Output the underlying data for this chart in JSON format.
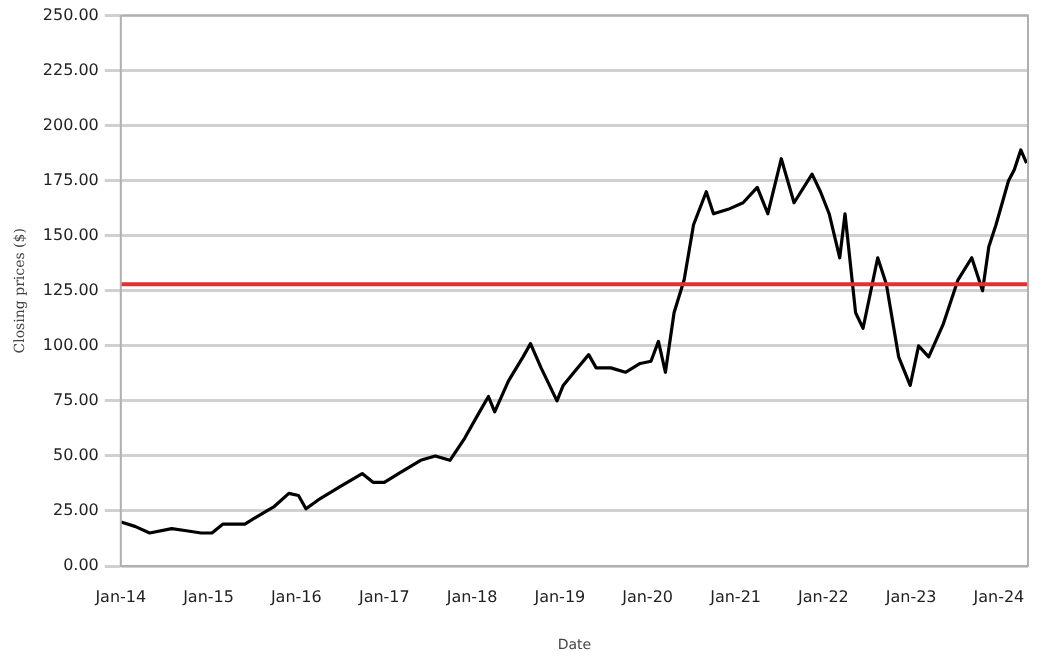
{
  "chart_data": {
    "type": "line",
    "xlabel": "Date",
    "ylabel": "Closing prices ($)",
    "x": [
      "2014-01-02",
      "2014-03-01",
      "2014-05-01",
      "2014-08-01",
      "2014-10-01",
      "2014-12-01",
      "2015-01-15",
      "2015-03-01",
      "2015-06-01",
      "2015-07-15",
      "2015-10-01",
      "2015-12-01",
      "2016-01-10",
      "2016-02-10",
      "2016-04-01",
      "2016-07-01",
      "2016-10-01",
      "2016-11-15",
      "2017-01-01",
      "2017-03-01",
      "2017-06-01",
      "2017-08-01",
      "2017-10-01",
      "2017-12-01",
      "2018-02-01",
      "2018-03-10",
      "2018-04-05",
      "2018-06-01",
      "2018-08-01",
      "2018-09-01",
      "2018-10-15",
      "2018-12-20",
      "2019-01-15",
      "2019-03-01",
      "2019-05-01",
      "2019-06-01",
      "2019-08-01",
      "2019-10-01",
      "2019-12-01",
      "2020-01-15",
      "2020-02-15",
      "2020-03-15",
      "2020-04-20",
      "2020-06-01",
      "2020-07-10",
      "2020-09-01",
      "2020-10-01",
      "2020-12-01",
      "2021-02-01",
      "2021-04-01",
      "2021-05-15",
      "2021-07-10",
      "2021-09-01",
      "2021-11-15",
      "2021-12-20",
      "2022-01-25",
      "2022-03-10",
      "2022-04-01",
      "2022-05-15",
      "2022-06-15",
      "2022-08-15",
      "2022-09-20",
      "2022-11-10",
      "2022-12-28",
      "2023-02-01",
      "2023-03-15",
      "2023-05-15",
      "2023-07-15",
      "2023-09-10",
      "2023-10-25",
      "2023-11-20",
      "2023-12-20",
      "2024-02-10",
      "2024-03-05",
      "2024-04-01",
      "2024-04-25"
    ],
    "series": [
      {
        "color": "#000000",
        "values": [
          20,
          18,
          15,
          17,
          16,
          15,
          15,
          19,
          19,
          22,
          27,
          33,
          32,
          26,
          30,
          36,
          42,
          38,
          38,
          42,
          48,
          50,
          48,
          58,
          70,
          77,
          70,
          84,
          95,
          101,
          90,
          75,
          82,
          88,
          96,
          90,
          90,
          88,
          92,
          93,
          102,
          88,
          115,
          130,
          155,
          170,
          160,
          162,
          165,
          172,
          160,
          185,
          165,
          178,
          170,
          160,
          140,
          160,
          115,
          108,
          140,
          128,
          95,
          82,
          100,
          95,
          110,
          130,
          140,
          125,
          145,
          155,
          175,
          180,
          189,
          183
        ]
      }
    ],
    "xlim": [
      "2014-01-01",
      "2024-05-01"
    ],
    "xticks": [
      {
        "value": "2014-01-01",
        "label": "Jan-14"
      },
      {
        "value": "2015-01-01",
        "label": "Jan-15"
      },
      {
        "value": "2016-01-01",
        "label": "Jan-16"
      },
      {
        "value": "2017-01-01",
        "label": "Jan-17"
      },
      {
        "value": "2018-01-01",
        "label": "Jan-18"
      },
      {
        "value": "2019-01-01",
        "label": "Jan-19"
      },
      {
        "value": "2020-01-01",
        "label": "Jan-20"
      },
      {
        "value": "2021-01-01",
        "label": "Jan-21"
      },
      {
        "value": "2022-01-01",
        "label": "Jan-22"
      },
      {
        "value": "2023-01-01",
        "label": "Jan-23"
      },
      {
        "value": "2024-01-01",
        "label": "Jan-24"
      }
    ],
    "ylim": [
      0,
      250
    ],
    "yticks": [
      {
        "value": 0,
        "label": "0.00"
      },
      {
        "value": 25,
        "label": "25.00"
      },
      {
        "value": 50,
        "label": "50.00"
      },
      {
        "value": 75,
        "label": "75.00"
      },
      {
        "value": 100,
        "label": "100.00"
      },
      {
        "value": 125,
        "label": "125.00"
      },
      {
        "value": 150,
        "label": "150.00"
      },
      {
        "value": 175,
        "label": "175.00"
      },
      {
        "value": 200,
        "label": "200.00"
      },
      {
        "value": 225,
        "label": "225.00"
      },
      {
        "value": 250,
        "label": "250.00"
      }
    ],
    "ref_lines": [
      {
        "axis": "y",
        "value": 128,
        "color": "#e03030"
      }
    ],
    "grid": "y",
    "legend": false,
    "marker": "none",
    "line_style": "solid"
  }
}
